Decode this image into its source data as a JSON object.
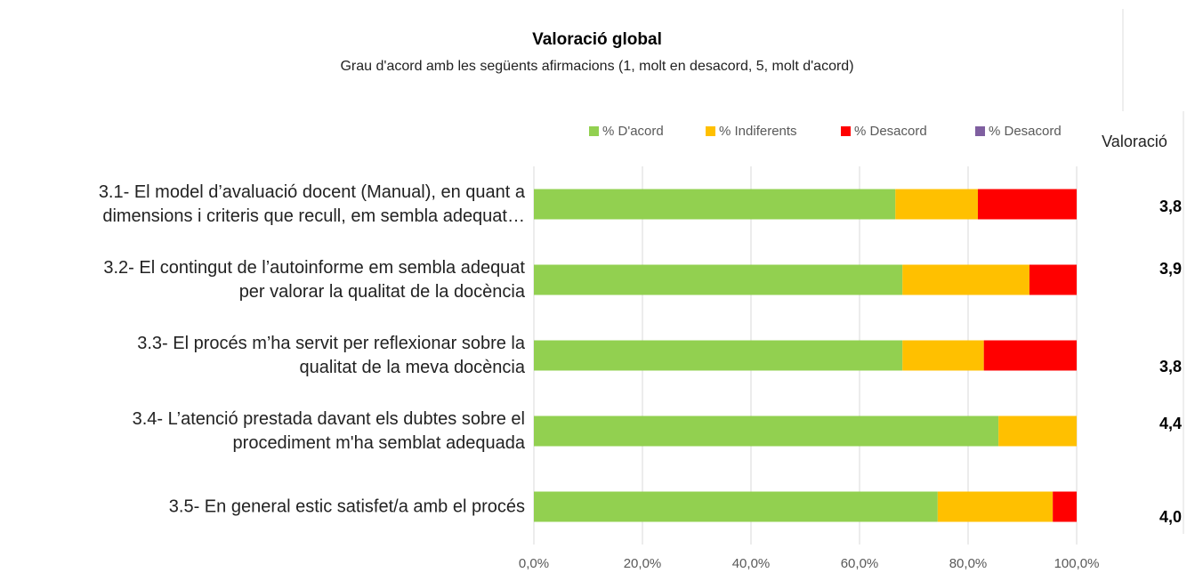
{
  "chart_data": {
    "type": "stacked_barh",
    "title": "Valoració global",
    "subtitle": "Grau d'acord amb les següents afirmacions (1, molt en desacord, 5, molt d'acord)",
    "categories": [
      "3.1- El model d’avaluació docent (Manual), en quant a\ndimensions i criteris que recull, em sembla adequat…",
      "3.2- El contingut de l’autoinforme em sembla adequat\nper valorar la qualitat de la docència",
      "3.3- El procés m’ha servit per reflexionar sobre la\nqualitat de la meva docència",
      "3.4- L’atenció prestada davant els dubtes sobre el\nprocediment m'ha semblat adequada",
      "3.5- En general estic satisfet/a amb el procés"
    ],
    "series": [
      {
        "name": "% D'acord",
        "color": "#92d050",
        "values": [
          66.6,
          67.9,
          67.9,
          85.6,
          74.4
        ]
      },
      {
        "name": "% Indiferents",
        "color": "#ffc000",
        "values": [
          15.2,
          23.4,
          15.0,
          14.4,
          21.2
        ]
      },
      {
        "name": "% Desacord",
        "color": "#ff0000",
        "values": [
          18.2,
          8.7,
          17.1,
          0,
          4.4
        ]
      },
      {
        "name": "% Desacord",
        "color": "#7f5fa0",
        "values": [
          0,
          0,
          0,
          0,
          0
        ]
      }
    ],
    "xlim": [
      0,
      100
    ],
    "xticks": [
      {
        "value": 0,
        "label": "0,0%"
      },
      {
        "value": 20,
        "label": "20,0%"
      },
      {
        "value": 40,
        "label": "40,0%"
      },
      {
        "value": 60,
        "label": "60,0%"
      },
      {
        "value": 80,
        "label": "80,0%"
      },
      {
        "value": 100,
        "label": "100,0%"
      }
    ],
    "grid": true,
    "legend": "top",
    "valoracio": {
      "title": "Valoració",
      "values": [
        3.8,
        3.9,
        3.8,
        4.4,
        4.0
      ],
      "value_labels": [
        "3,8",
        "3,9",
        "3,8",
        "4,4",
        "4,0"
      ]
    }
  }
}
